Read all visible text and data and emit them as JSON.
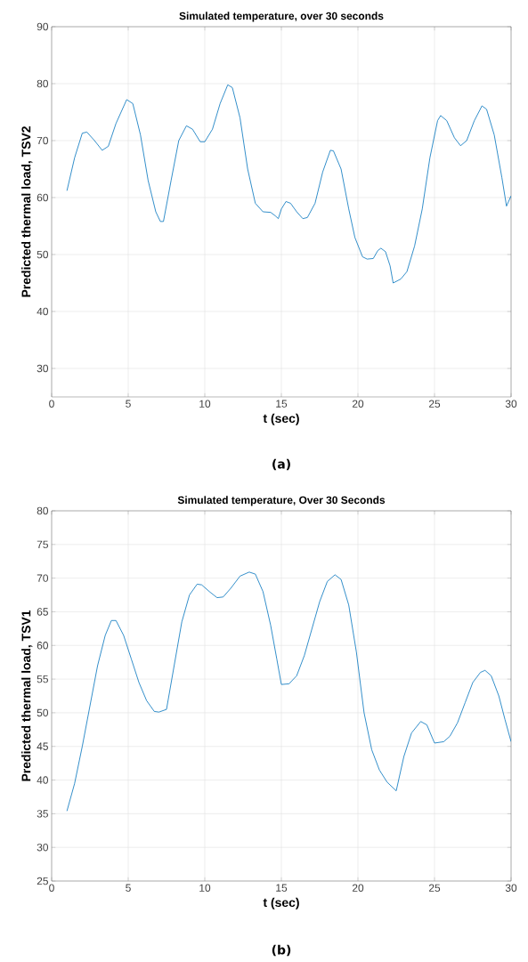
{
  "chart_data": [
    {
      "type": "line",
      "title": "Simulated temperature, over 30 seconds",
      "xlabel": "t (sec)",
      "ylabel": "Predicted thermal load, TSV2",
      "annotations": [
        "(a)"
      ],
      "xlim": [
        0,
        30
      ],
      "ylim": [
        25,
        90
      ],
      "xticks": [
        0,
        5,
        10,
        15,
        20,
        25,
        30
      ],
      "yticks": [
        30,
        40,
        50,
        60,
        70,
        80,
        90
      ],
      "grid": true,
      "marker": "none",
      "line_style": "solid",
      "series": [
        {
          "color": "#0072bd",
          "x": [
            1.0,
            1.5,
            2.0,
            2.3,
            2.8,
            3.3,
            3.7,
            4.2,
            4.9,
            5.3,
            5.8,
            6.3,
            6.8,
            7.1,
            7.3,
            7.8,
            8.3,
            8.8,
            9.2,
            9.7,
            10.0,
            10.5,
            11.0,
            11.5,
            11.8,
            12.3,
            12.8,
            13.3,
            13.8,
            14.3,
            14.6,
            14.8,
            15.0,
            15.3,
            15.6,
            16.0,
            16.4,
            16.7,
            17.2,
            17.7,
            18.2,
            18.4,
            18.9,
            19.4,
            19.8,
            20.3,
            20.6,
            21.0,
            21.3,
            21.5,
            21.8,
            22.1,
            22.3,
            22.8,
            23.2,
            23.7,
            24.2,
            24.7,
            25.2,
            25.4,
            25.8,
            26.3,
            26.7,
            27.1,
            27.6,
            28.1,
            28.4,
            28.9,
            29.4,
            29.7,
            30
          ],
          "values": [
            61.2,
            67,
            71.3,
            71.5,
            70,
            68.3,
            69,
            73,
            77.2,
            76.5,
            71,
            63,
            57.5,
            55.8,
            55.8,
            63,
            70,
            72.6,
            72,
            69.8,
            69.8,
            72,
            76.5,
            79.8,
            79.3,
            74,
            65,
            59,
            57.5,
            57.4,
            56.8,
            56.3,
            58,
            59.3,
            59,
            57.5,
            56.3,
            56.5,
            59,
            64.5,
            68.3,
            68.2,
            65,
            58,
            53,
            49.6,
            49.2,
            49.3,
            50.7,
            51.1,
            50.5,
            48,
            45,
            45.7,
            47,
            51.5,
            58,
            67,
            73.5,
            74.4,
            73.5,
            70.5,
            69.1,
            70,
            73.5,
            76.1,
            75.5,
            71,
            63.5,
            58.5,
            60.3
          ]
        }
      ]
    },
    {
      "type": "line",
      "title": "Simulated temperature, Over 30 Seconds",
      "xlabel": "t (sec)",
      "ylabel": "Predicted thermal load, TSV1",
      "annotations": [
        "(b)"
      ],
      "xlim": [
        0,
        30
      ],
      "ylim": [
        25,
        80
      ],
      "xticks": [
        0,
        5,
        10,
        15,
        20,
        25,
        30
      ],
      "yticks": [
        25,
        30,
        35,
        40,
        45,
        50,
        55,
        60,
        65,
        70,
        75,
        80
      ],
      "grid": true,
      "marker": "none",
      "line_style": "solid",
      "series": [
        {
          "color": "#0072bd",
          "x": [
            1.0,
            1.5,
            2.0,
            2.5,
            3.0,
            3.5,
            3.9,
            4.2,
            4.7,
            5.2,
            5.7,
            6.2,
            6.7,
            7.0,
            7.5,
            8.0,
            8.5,
            9.0,
            9.5,
            9.8,
            10.3,
            10.8,
            11.2,
            11.7,
            12.3,
            12.9,
            13.3,
            13.8,
            14.3,
            14.7,
            15.0,
            15.5,
            16.0,
            16.5,
            17.0,
            17.5,
            18.0,
            18.5,
            18.9,
            19.4,
            19.9,
            20.4,
            20.9,
            21.4,
            21.9,
            22.5,
            23.0,
            23.5,
            24.1,
            24.5,
            25.0,
            25.6,
            26.0,
            26.5,
            27.0,
            27.5,
            28.0,
            28.3,
            28.7,
            29.2,
            29.6,
            30
          ],
          "values": [
            35.4,
            39.5,
            45,
            51,
            57,
            61.5,
            63.7,
            63.7,
            61.5,
            58,
            54.5,
            51.8,
            50.2,
            50.1,
            50.5,
            57,
            63.5,
            67.5,
            69.1,
            69,
            68,
            67.1,
            67.2,
            68.5,
            70.3,
            70.9,
            70.6,
            68,
            63,
            58,
            54.2,
            54.3,
            55.5,
            58.5,
            62.5,
            66.5,
            69.5,
            70.5,
            69.8,
            66,
            59,
            50,
            44.5,
            41.5,
            39.7,
            38.4,
            43.5,
            47,
            48.7,
            48.2,
            45.5,
            45.7,
            46.5,
            48.5,
            51.5,
            54.5,
            56,
            56.3,
            55.5,
            52.5,
            49,
            45.7
          ]
        }
      ]
    }
  ]
}
